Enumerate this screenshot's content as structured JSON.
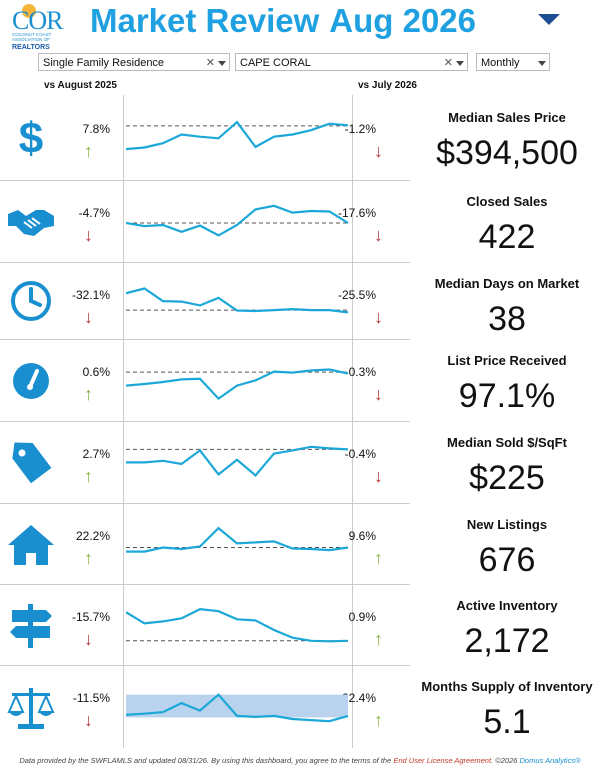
{
  "header": {
    "title_part1": "Market Review",
    "title_part2": "Aug 2026",
    "logo_text": "COR",
    "logo_sub": "COCONUT COAST ASSOCIATION OF",
    "logo_realtors": "REALTORS"
  },
  "filters": {
    "property_type": "Single Family Residence",
    "area": "CAPE CORAL",
    "period": "Monthly"
  },
  "col_headers": {
    "left": "vs August 2025",
    "right": "vs July 2026"
  },
  "colors": {
    "accent": "#1fa0e0",
    "up": "#8bb44a",
    "down": "#b33a3a",
    "icon": "#1a8fd0"
  },
  "metrics": [
    {
      "label": "Median Sales Price",
      "value": "$394,500",
      "yoy": "7.8%",
      "yoy_dir": "up",
      "mom": "-1.2%",
      "mom_dir": "down",
      "icon": "dollar-icon",
      "trend": [
        0.35,
        0.38,
        0.46,
        0.62,
        0.58,
        0.55,
        0.85,
        0.39,
        0.58,
        0.62,
        0.7,
        0.82,
        0.79
      ],
      "ref": 0.78
    },
    {
      "label": "Closed Sales",
      "value": "422",
      "yoy": "-4.7%",
      "yoy_dir": "down",
      "mom": "-17.6%",
      "mom_dir": "down",
      "icon": "handshake-icon",
      "trend": [
        0.52,
        0.46,
        0.48,
        0.35,
        0.47,
        0.28,
        0.48,
        0.78,
        0.85,
        0.72,
        0.75,
        0.74,
        0.52
      ],
      "ref": 0.52
    },
    {
      "label": "Median Days on Market",
      "value": "38",
      "yoy": "-32.1%",
      "yoy_dir": "down",
      "mom": "-25.5%",
      "mom_dir": "down",
      "icon": "clock-icon",
      "trend": [
        0.72,
        0.82,
        0.55,
        0.54,
        0.46,
        0.62,
        0.35,
        0.34,
        0.36,
        0.38,
        0.36,
        0.36,
        0.31
      ],
      "ref": 0.36
    },
    {
      "label": "List Price Received",
      "value": "97.1%",
      "yoy": "0.6%",
      "yoy_dir": "up",
      "mom": "-0.3%",
      "mom_dir": "down",
      "icon": "gauge-icon",
      "trend": [
        0.45,
        0.48,
        0.52,
        0.57,
        0.58,
        0.2,
        0.45,
        0.55,
        0.72,
        0.7,
        0.74,
        0.76,
        0.68
      ],
      "ref": 0.71
    },
    {
      "label": "Median Sold $/SqFt",
      "value": "$225",
      "yoy": "2.7%",
      "yoy_dir": "up",
      "mom": "-0.4%",
      "mom_dir": "down",
      "icon": "tag-icon",
      "trend": [
        0.55,
        0.55,
        0.58,
        0.52,
        0.78,
        0.32,
        0.6,
        0.3,
        0.72,
        0.78,
        0.85,
        0.82,
        0.8
      ],
      "ref": 0.8
    },
    {
      "label": "New Listings",
      "value": "676",
      "yoy": "22.2%",
      "yoy_dir": "up",
      "mom": "9.6%",
      "mom_dir": "up",
      "icon": "house-icon",
      "trend": [
        0.4,
        0.4,
        0.48,
        0.45,
        0.5,
        0.86,
        0.56,
        0.58,
        0.6,
        0.46,
        0.45,
        0.43,
        0.48
      ],
      "ref": 0.48
    },
    {
      "label": "Active Inventory",
      "value": "2,172",
      "yoy": "-15.7%",
      "yoy_dir": "down",
      "mom": "0.9%",
      "mom_dir": "up",
      "icon": "signpost-icon",
      "trend": [
        0.8,
        0.58,
        0.62,
        0.68,
        0.86,
        0.82,
        0.66,
        0.64,
        0.45,
        0.3,
        0.24,
        0.23,
        0.24
      ],
      "ref": 0.24
    },
    {
      "label": "Months Supply of Inventory",
      "value": "5.1",
      "yoy": "-11.5%",
      "yoy_dir": "down",
      "mom": "22.4%",
      "mom_dir": "up",
      "icon": "scales-icon",
      "trend": [
        0.4,
        0.42,
        0.45,
        0.62,
        0.48,
        0.78,
        0.38,
        0.36,
        0.38,
        0.32,
        0.3,
        0.28,
        0.38
      ],
      "ref": null,
      "band": [
        0.35,
        0.78
      ]
    }
  ],
  "footer": {
    "text1": "Data provided by the SWFLAMLS and updated 08/31/26.  By using this dashboard, you agree to the terms of the ",
    "link": "End User License Agreement",
    "text2": ".  ©2026 ",
    "brand": "Domus Analytics®"
  }
}
